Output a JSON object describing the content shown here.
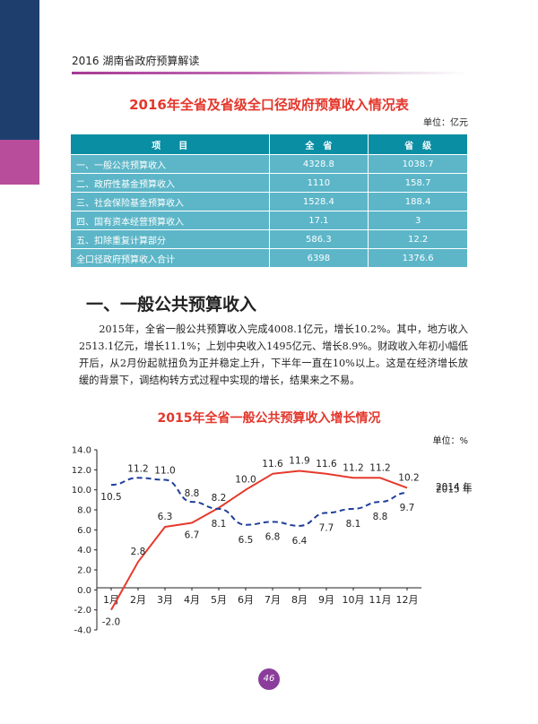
{
  "header": {
    "running_head": "2016  湖南省政府预算解读"
  },
  "table": {
    "title": "2016年全省及省级全口径政府预算收入情况表",
    "unit": "单位：亿元",
    "columns": [
      "项　　目",
      "全　省",
      "省　级"
    ],
    "rows": [
      [
        "一、一般公共预算收入",
        "4328.8",
        "1038.7"
      ],
      [
        "二、政府性基金预算收入",
        "1110",
        "158.7"
      ],
      [
        "三、社会保险基金预算收入",
        "1528.4",
        "188.4"
      ],
      [
        "四、国有资本经营预算收入",
        "17.1",
        "3"
      ],
      [
        "五、扣除重复计算部分",
        "586.3",
        "12.2"
      ],
      [
        "全口径政府预算收入合计",
        "6398",
        "1376.6"
      ]
    ]
  },
  "section": {
    "title": "一、一般公共预算收入",
    "paragraph": "2015年，全省一般公共预算收入完成4008.1亿元，增长10.2%。其中，地方收入2513.1亿元，增长11.1%；上划中央收入1495亿元、增长8.9%。财政收入年初小幅低开后，从2月份起就扭负为正并稳定上升，下半年一直在10%以上。这是在经济增长放缓的背景下，调结构转方式过程中实现的增长，结果来之不易。"
  },
  "chart_data": {
    "type": "line",
    "title": "2015年全省一般公共预算收入增长情况",
    "unit": "单位：%",
    "categories": [
      "1月",
      "2月",
      "3月",
      "4月",
      "5月",
      "6月",
      "7月",
      "8月",
      "9月",
      "10月",
      "11月",
      "12月"
    ],
    "series": [
      {
        "name": "2015 年",
        "values": [
          -2.0,
          2.8,
          6.3,
          6.7,
          8.2,
          10.0,
          11.6,
          11.9,
          11.6,
          11.2,
          11.2,
          10.2
        ],
        "color": "#e53a2c",
        "style": "solid"
      },
      {
        "name": "2014 年",
        "values": [
          10.5,
          11.2,
          11.0,
          8.8,
          8.1,
          6.5,
          6.8,
          6.4,
          7.7,
          8.1,
          8.8,
          9.7
        ],
        "color": "#1f3f9a",
        "style": "dashed"
      }
    ],
    "yticks": [
      "14.0",
      "12.0",
      "10.0",
      "8.0",
      "6.0",
      "4.0",
      "2.0",
      "0.0",
      "-2.0",
      "-4.0"
    ],
    "ylim": [
      -4,
      14
    ],
    "grid": false
  },
  "footer": {
    "page_number": "46"
  }
}
